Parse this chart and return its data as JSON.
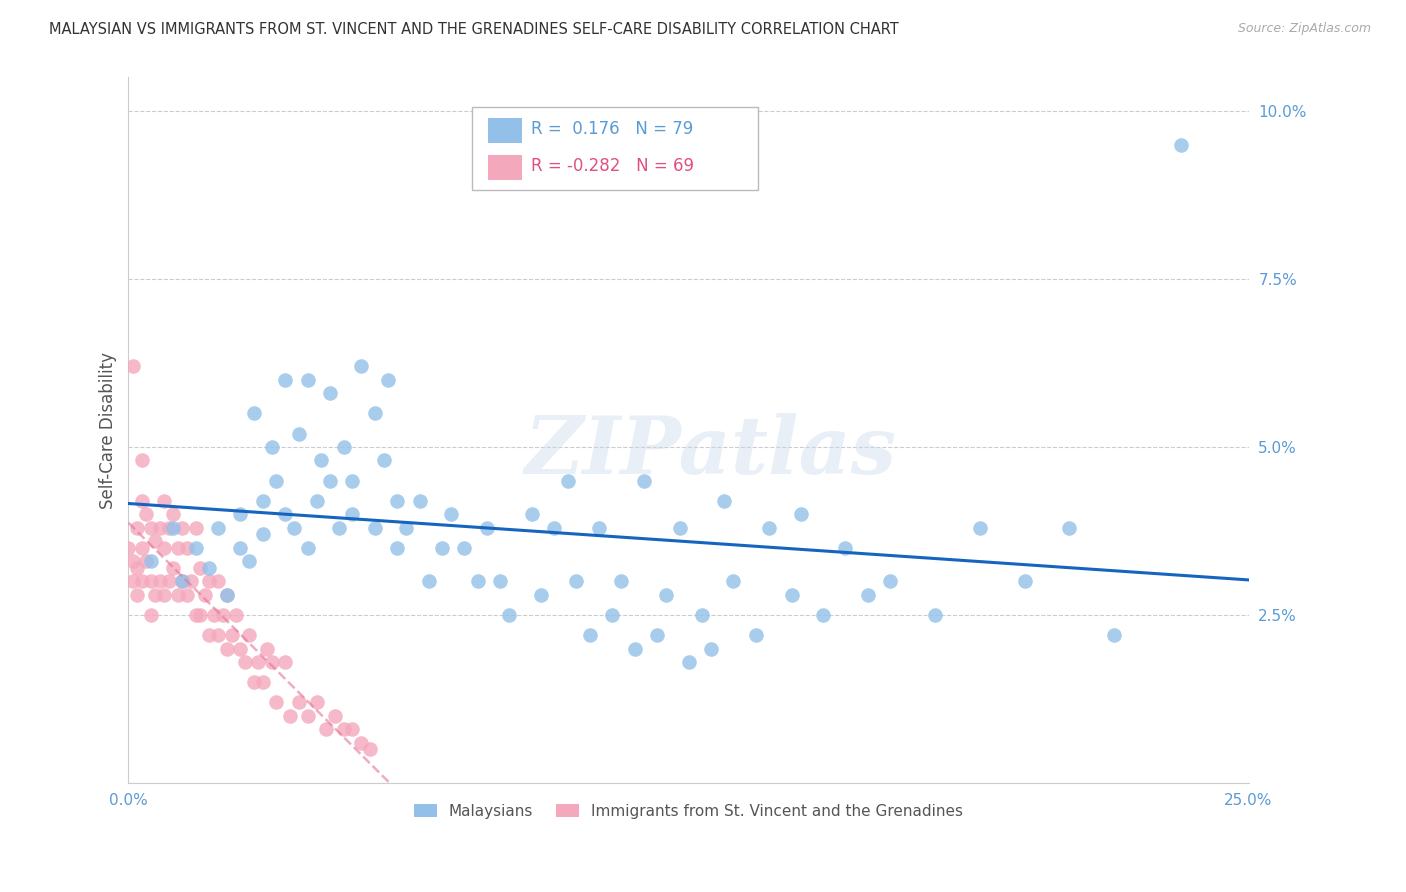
{
  "title": "MALAYSIAN VS IMMIGRANTS FROM ST. VINCENT AND THE GRENADINES SELF-CARE DISABILITY CORRELATION CHART",
  "source": "Source: ZipAtlas.com",
  "ylabel": "Self-Care Disability",
  "xlim": [
    0.0,
    0.25
  ],
  "ylim": [
    0.0,
    0.105
  ],
  "yticks": [
    0.0,
    0.025,
    0.05,
    0.075,
    0.1
  ],
  "ytick_labels": [
    "",
    "2.5%",
    "5.0%",
    "7.5%",
    "10.0%"
  ],
  "xticks": [
    0.0,
    0.05,
    0.1,
    0.15,
    0.2,
    0.25
  ],
  "xtick_labels": [
    "0.0%",
    "",
    "",
    "",
    "",
    "25.0%"
  ],
  "r_blue": 0.176,
  "n_blue": 79,
  "r_pink": -0.282,
  "n_pink": 69,
  "blue_color": "#92C0E8",
  "pink_color": "#F4A8BC",
  "line_blue": "#1565C0",
  "line_pink": "#E57399",
  "axis_color": "#5B9BD5",
  "watermark": "ZIPatlas",
  "blue_x": [
    0.005,
    0.01,
    0.012,
    0.015,
    0.018,
    0.02,
    0.022,
    0.025,
    0.025,
    0.027,
    0.028,
    0.03,
    0.03,
    0.032,
    0.033,
    0.035,
    0.035,
    0.037,
    0.038,
    0.04,
    0.04,
    0.042,
    0.043,
    0.045,
    0.045,
    0.047,
    0.048,
    0.05,
    0.05,
    0.052,
    0.055,
    0.055,
    0.057,
    0.058,
    0.06,
    0.06,
    0.062,
    0.065,
    0.067,
    0.07,
    0.072,
    0.075,
    0.078,
    0.08,
    0.083,
    0.085,
    0.09,
    0.092,
    0.095,
    0.098,
    0.1,
    0.103,
    0.105,
    0.108,
    0.11,
    0.113,
    0.115,
    0.118,
    0.12,
    0.123,
    0.125,
    0.128,
    0.13,
    0.133,
    0.135,
    0.14,
    0.143,
    0.148,
    0.15,
    0.155,
    0.16,
    0.165,
    0.17,
    0.18,
    0.19,
    0.2,
    0.21,
    0.22,
    0.235
  ],
  "blue_y": [
    0.033,
    0.038,
    0.03,
    0.035,
    0.032,
    0.038,
    0.028,
    0.04,
    0.035,
    0.033,
    0.055,
    0.042,
    0.037,
    0.05,
    0.045,
    0.04,
    0.06,
    0.038,
    0.052,
    0.06,
    0.035,
    0.042,
    0.048,
    0.045,
    0.058,
    0.038,
    0.05,
    0.045,
    0.04,
    0.062,
    0.055,
    0.038,
    0.048,
    0.06,
    0.042,
    0.035,
    0.038,
    0.042,
    0.03,
    0.035,
    0.04,
    0.035,
    0.03,
    0.038,
    0.03,
    0.025,
    0.04,
    0.028,
    0.038,
    0.045,
    0.03,
    0.022,
    0.038,
    0.025,
    0.03,
    0.02,
    0.045,
    0.022,
    0.028,
    0.038,
    0.018,
    0.025,
    0.02,
    0.042,
    0.03,
    0.022,
    0.038,
    0.028,
    0.04,
    0.025,
    0.035,
    0.028,
    0.03,
    0.025,
    0.038,
    0.03,
    0.038,
    0.022,
    0.095
  ],
  "pink_x": [
    0.0,
    0.001,
    0.001,
    0.002,
    0.002,
    0.002,
    0.003,
    0.003,
    0.003,
    0.004,
    0.004,
    0.005,
    0.005,
    0.005,
    0.006,
    0.006,
    0.007,
    0.007,
    0.008,
    0.008,
    0.008,
    0.009,
    0.009,
    0.01,
    0.01,
    0.011,
    0.011,
    0.012,
    0.012,
    0.013,
    0.013,
    0.014,
    0.015,
    0.015,
    0.016,
    0.016,
    0.017,
    0.018,
    0.018,
    0.019,
    0.02,
    0.02,
    0.021,
    0.022,
    0.022,
    0.023,
    0.024,
    0.025,
    0.026,
    0.027,
    0.028,
    0.029,
    0.03,
    0.031,
    0.032,
    0.033,
    0.035,
    0.036,
    0.038,
    0.04,
    0.042,
    0.044,
    0.046,
    0.048,
    0.05,
    0.052,
    0.054,
    0.001,
    0.003
  ],
  "pink_y": [
    0.035,
    0.033,
    0.03,
    0.038,
    0.032,
    0.028,
    0.042,
    0.035,
    0.03,
    0.04,
    0.033,
    0.038,
    0.03,
    0.025,
    0.036,
    0.028,
    0.038,
    0.03,
    0.042,
    0.035,
    0.028,
    0.038,
    0.03,
    0.04,
    0.032,
    0.035,
    0.028,
    0.038,
    0.03,
    0.035,
    0.028,
    0.03,
    0.038,
    0.025,
    0.032,
    0.025,
    0.028,
    0.03,
    0.022,
    0.025,
    0.03,
    0.022,
    0.025,
    0.028,
    0.02,
    0.022,
    0.025,
    0.02,
    0.018,
    0.022,
    0.015,
    0.018,
    0.015,
    0.02,
    0.018,
    0.012,
    0.018,
    0.01,
    0.012,
    0.01,
    0.012,
    0.008,
    0.01,
    0.008,
    0.008,
    0.006,
    0.005,
    0.062,
    0.048
  ]
}
